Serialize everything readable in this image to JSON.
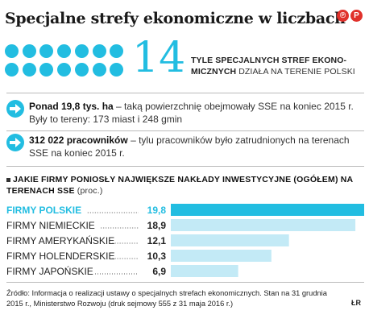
{
  "header": {
    "title": "Specjalne strefy ekonomiczne w liczbach",
    "logo": [
      "℗",
      "P"
    ]
  },
  "big_stat": {
    "number": "14",
    "dots_count": 14,
    "text_bold": "TYLE SPECJALNYCH STREF EKONO-MICZNYCH",
    "text_rest": " DZIAŁA NA TERENIE POLSKI"
  },
  "facts": [
    {
      "bold": "Ponad 19,8 tys. ha",
      "rest": " – taką powierzchnię obejmowały SSE na koniec 2015 r. Były to tereny: 173 miast i 248 gmin"
    },
    {
      "bold": "312 022 pracowników",
      "rest": " – tylu pracowników było zatrudnionych na terenach SSE na koniec 2015 r."
    }
  ],
  "colors": {
    "accent": "#22bde1",
    "light": "#c3eaf6",
    "logo": "#e0312b"
  },
  "chart_data": {
    "type": "bar",
    "orientation": "horizontal",
    "title": "Jakie firmy poniosły największe nakłady inwestycyjne (ogółem) na terenach SSE",
    "unit": "(proc.)",
    "categories": [
      "FIRMY POLSKIE",
      "FIRMY NIEMIECKIE",
      "FIRMY AMERYKAŃSKIE",
      "FIRMY HOLENDERSKIE",
      "FIRMY JAPOŃSKIE"
    ],
    "values": [
      19.8,
      18.9,
      12.1,
      10.3,
      6.9
    ],
    "value_labels": [
      "19,8",
      "18,9",
      "12,1",
      "10,3",
      "6,9"
    ],
    "highlight_index": 0
  },
  "source": {
    "text": "Źródło: Informacja o realizacji ustawy o specjalnych strefach ekonomicznych. Stan na 31 grudnia 2015 r., Ministerstwo Rozwoju (druk sejmowy 555 z 31 maja 2016 r.)",
    "author": "ŁR"
  }
}
